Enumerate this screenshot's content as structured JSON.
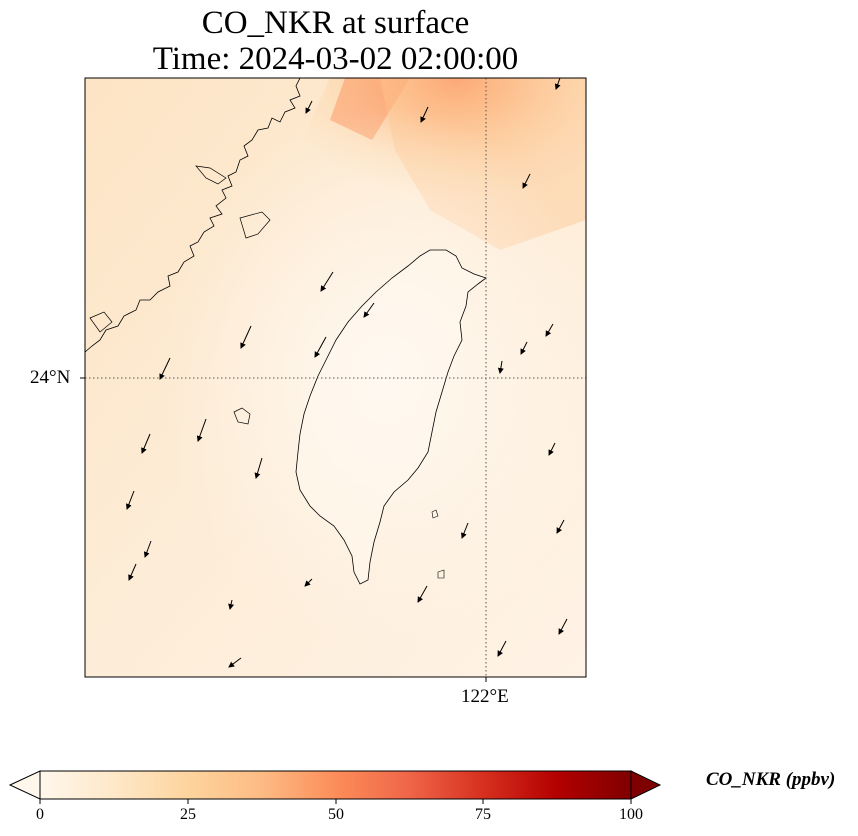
{
  "title": {
    "line1": "CO_NKR at surface",
    "line2": "Time: 2024-03-02 02:00:00"
  },
  "map": {
    "extent": {
      "lon_min": 118.2,
      "lon_max": 122.9,
      "lat_min": 21.25,
      "lat_max": 26.75
    },
    "gridlines": {
      "lon": 122.0,
      "lat": 24.0,
      "style": "dotted"
    },
    "lat_label": "24°N",
    "lon_label": "122°E",
    "colors": {
      "coastline": "#000000",
      "gridline": "#555555",
      "field_low": "#fff5eb",
      "field_mid": "#fdd09f",
      "field_high": "#fc8d59"
    }
  },
  "colorbar": {
    "label": "CO_NKR (ppbv)",
    "ticks": [
      "0",
      "25",
      "50",
      "75",
      "100"
    ],
    "min": 0,
    "max": 100,
    "colormap": "OrRd",
    "colormap_stops": [
      "#fff7ec",
      "#fee8c8",
      "#fdd49e",
      "#fdbb84",
      "#fc8d59",
      "#ef6548",
      "#d7301f",
      "#b30000",
      "#7f0000"
    ],
    "extend": "both"
  }
}
